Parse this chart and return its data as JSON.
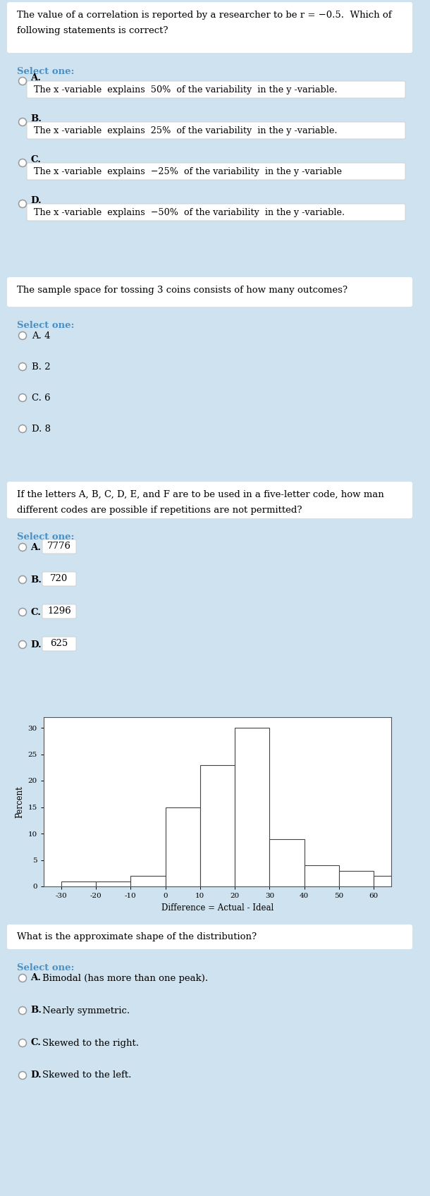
{
  "bg_color": "#cfe2f0",
  "card_color": "#ffffff",
  "card_inner_color": "#cfe2f0",
  "select_color": "#4a90c4",
  "q1_question": "The value of a correlation is reported by a researcher to be r = −0.5.  Which of\nfollowing statements is correct?",
  "q1_opts": [
    "The x -variable  explains  50%  of the variability  in the y -variable.",
    "The x -variable  explains  25%  of the variability  in the y -variable.",
    "The x -variable  explains  −25%  of the variability  in the y -variable",
    "The x -variable  explains  −50%  of the variability  in the y -variable."
  ],
  "q2_question": "The sample space for tossing 3 coins consists of how many outcomes?",
  "q2_opts": [
    "A. 4",
    "B. 2",
    "C. 6",
    "D. 8"
  ],
  "q3_question": "If the letters A, B, C, D, E, and F are to be used in a five-letter code, how man\ndifferent codes are possible if repetitions are not permitted?",
  "q3_opt_labels": [
    "A.",
    "B.",
    "C.",
    "D."
  ],
  "q3_opt_vals": [
    "7776",
    "720",
    "1296",
    "625"
  ],
  "hist_vals": [
    1,
    1,
    2,
    15,
    23,
    30,
    9,
    4,
    3,
    2
  ],
  "hist_bin_edges": [
    -30,
    -20,
    -10,
    0,
    10,
    20,
    30,
    40,
    50,
    60
  ],
  "hist_xlabel": "Difference = Actual - Ideal",
  "hist_ylabel": "Percent",
  "q4_question": "What is the approximate shape of the distribution?",
  "q4_opts": [
    "Bimodal (has more than one peak).",
    "Nearly symmetric.",
    "Skewed to the right.",
    "Skewed to the left."
  ],
  "select_label": "Select one:",
  "opt_letters": [
    "A.",
    "B.",
    "C.",
    "D."
  ]
}
